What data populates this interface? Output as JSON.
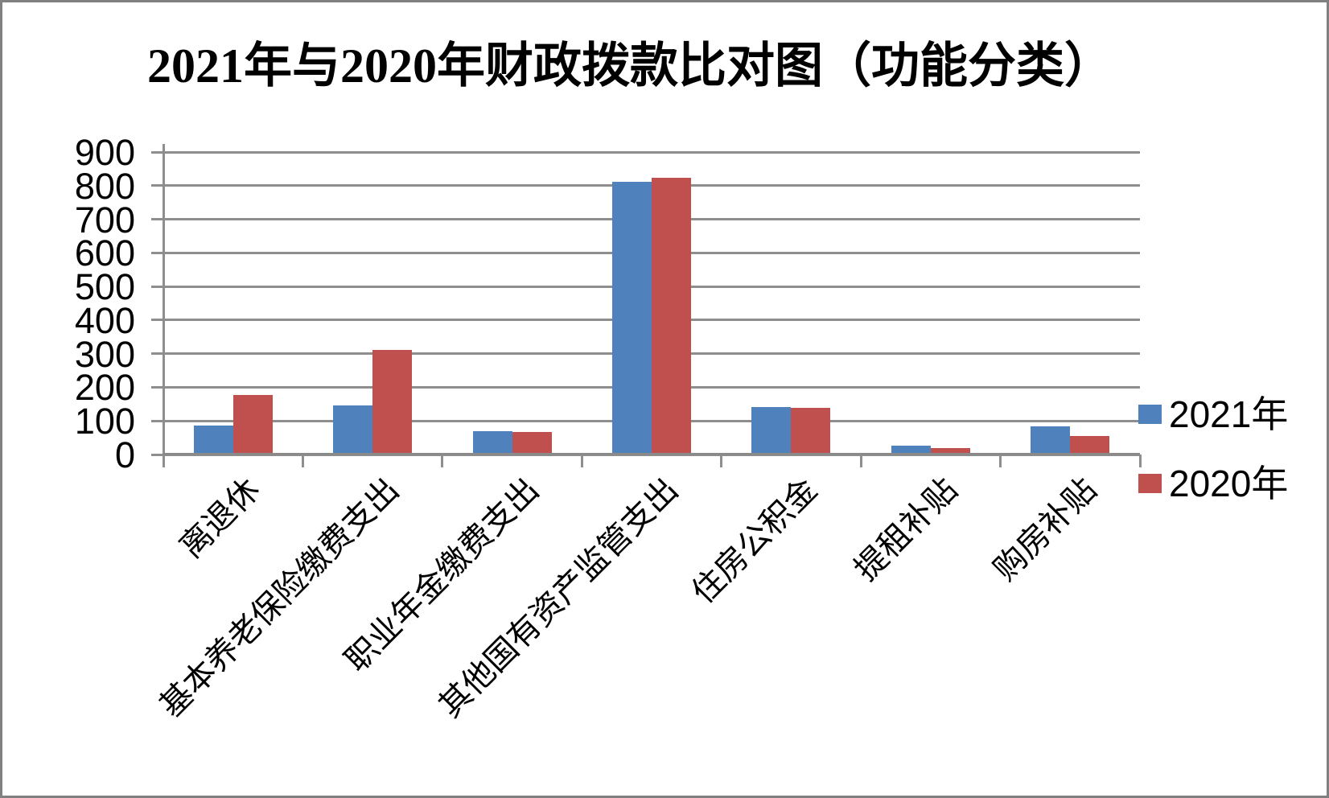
{
  "title": "2021年与2020年财政拨款比对图（功能分类）",
  "chart_data": {
    "type": "bar",
    "title": "2021年与2020年财政拨款比对图（功能分类）",
    "categories": [
      "离退休",
      "基本养老保险缴费支出",
      "职业年金缴费支出",
      "其他国有资产监管支出",
      "住房公积金",
      "提租补贴",
      "购房补贴"
    ],
    "series": [
      {
        "name": "2021年",
        "color": "#4F81BD",
        "values": [
          87,
          146,
          70,
          812,
          141,
          26,
          84
        ]
      },
      {
        "name": "2020年",
        "color": "#C0504D",
        "values": [
          176,
          312,
          68,
          824,
          140,
          19,
          56
        ]
      }
    ],
    "xlabel": "",
    "ylabel": "",
    "ylim": [
      0,
      900
    ],
    "ytick_interval": 100,
    "ytick_labels": [
      "0",
      "100",
      "200",
      "300",
      "400",
      "500",
      "600",
      "700",
      "800",
      "900"
    ],
    "grid": true,
    "legend_position": "right",
    "x_label_rotation_deg": 45
  }
}
